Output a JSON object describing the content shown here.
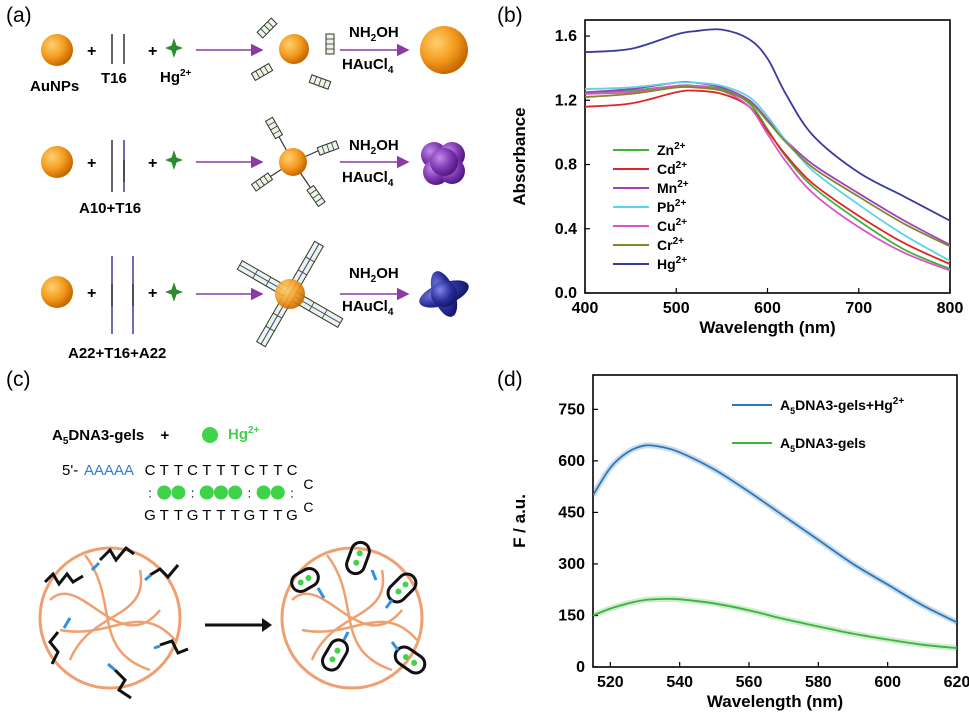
{
  "panel_labels": {
    "a": "(a)",
    "b": "(b)",
    "c": "(c)",
    "d": "(d)"
  },
  "panel_a": {
    "rows": [
      {
        "label": "T16",
        "reagent1": "NH2OH",
        "reagent2": "HAuCl4"
      },
      {
        "label": "A10+T16",
        "reagent1": "NH2OH",
        "reagent2": "HAuCl4"
      },
      {
        "label": "A22+T16+A22",
        "reagent1": "NH2OH",
        "reagent2": "HAuCl4"
      }
    ],
    "aunps_label": "AuNPs",
    "hg_label": "Hg",
    "hg_sup": "2+",
    "plus": "+",
    "product_colors": [
      "#f39a1e",
      "#7a35b0",
      "#2b2f9c"
    ]
  },
  "chart_data": [
    {
      "type": "line",
      "panel": "b",
      "xlabel": "Wavelength (nm)",
      "ylabel": "Absorbance",
      "xlim": [
        400,
        800
      ],
      "ylim": [
        0.0,
        1.7
      ],
      "xticks": [
        400,
        500,
        600,
        700,
        800
      ],
      "yticks": [
        0.0,
        0.4,
        0.8,
        1.2,
        1.6
      ],
      "ytick_labels": [
        "0.0",
        "0.4",
        "0.8",
        "1.2",
        "1.6"
      ],
      "legend_position": "left",
      "x": [
        400,
        450,
        500,
        520,
        550,
        580,
        600,
        620,
        650,
        700,
        750,
        800
      ],
      "series": [
        {
          "name": "Zn",
          "sup": "2+",
          "color": "#3cb43c",
          "values": [
            1.25,
            1.26,
            1.29,
            1.29,
            1.27,
            1.18,
            1.02,
            0.85,
            0.66,
            0.45,
            0.27,
            0.15
          ]
        },
        {
          "name": "Cd",
          "sup": "2+",
          "color": "#e02525",
          "values": [
            1.16,
            1.18,
            1.25,
            1.26,
            1.24,
            1.16,
            1.01,
            0.86,
            0.68,
            0.48,
            0.31,
            0.18
          ]
        },
        {
          "name": "Mn",
          "sup": "2+",
          "color": "#a63cbf",
          "values": [
            1.25,
            1.27,
            1.31,
            1.31,
            1.28,
            1.2,
            1.08,
            0.95,
            0.8,
            0.62,
            0.45,
            0.3
          ]
        },
        {
          "name": "Pb",
          "sup": "2+",
          "color": "#5fd3e0",
          "values": [
            1.27,
            1.28,
            1.31,
            1.31,
            1.29,
            1.22,
            1.1,
            0.95,
            0.76,
            0.55,
            0.36,
            0.2
          ]
        },
        {
          "name": "Cu",
          "sup": "2+",
          "color": "#e052c8",
          "values": [
            1.24,
            1.25,
            1.29,
            1.29,
            1.26,
            1.16,
            0.99,
            0.82,
            0.62,
            0.41,
            0.25,
            0.14
          ]
        },
        {
          "name": "Cr",
          "sup": "2+",
          "color": "#7d8a2a",
          "values": [
            1.22,
            1.24,
            1.28,
            1.28,
            1.26,
            1.19,
            1.07,
            0.94,
            0.78,
            0.6,
            0.43,
            0.29
          ]
        },
        {
          "name": "Hg",
          "sup": "2+",
          "color": "#3b3a9e",
          "values": [
            1.5,
            1.52,
            1.61,
            1.63,
            1.64,
            1.58,
            1.46,
            1.24,
            0.98,
            0.75,
            0.6,
            0.45
          ]
        }
      ]
    },
    {
      "type": "line",
      "panel": "d",
      "xlabel": "Wavelength (nm)",
      "ylabel": "F / a.u.",
      "xlim": [
        515,
        620
      ],
      "ylim": [
        0,
        850
      ],
      "xticks": [
        520,
        540,
        560,
        580,
        600,
        620
      ],
      "yticks": [
        0,
        150,
        300,
        450,
        600,
        750
      ],
      "legend_position": "top-right",
      "x": [
        515,
        520,
        525,
        530,
        535,
        540,
        550,
        560,
        570,
        580,
        590,
        600,
        610,
        620
      ],
      "series": [
        {
          "name": "A",
          "sub": "5",
          "rest": "DNA3-gels+Hg",
          "sup": "2+",
          "color": "#2f78b8",
          "values": [
            500,
            580,
            625,
            645,
            640,
            625,
            575,
            510,
            440,
            370,
            300,
            240,
            180,
            130
          ]
        },
        {
          "name": "A",
          "sub": "5",
          "rest": "DNA3-gels",
          "sup": "",
          "color": "#3cb43c",
          "values": [
            150,
            170,
            185,
            195,
            198,
            197,
            185,
            165,
            140,
            118,
            97,
            80,
            65,
            55
          ]
        }
      ]
    }
  ],
  "panel_c": {
    "title_prefix": "A",
    "title_sub": "5",
    "title_rest": "DNA3-gels",
    "plus": "+",
    "hg_label": "Hg",
    "hg_sup": "2+",
    "top_prime": "5'-",
    "top_a": "AAAAA",
    "top_seq": [
      "C",
      "T",
      "T",
      "C",
      "T",
      "T",
      "T",
      "C",
      "T",
      "T",
      "C"
    ],
    "bottom_seq": [
      "G",
      "T",
      "T",
      "G",
      "T",
      "T",
      "T",
      "G",
      "T",
      "T",
      "G"
    ],
    "loop": [
      "C",
      "C"
    ]
  }
}
